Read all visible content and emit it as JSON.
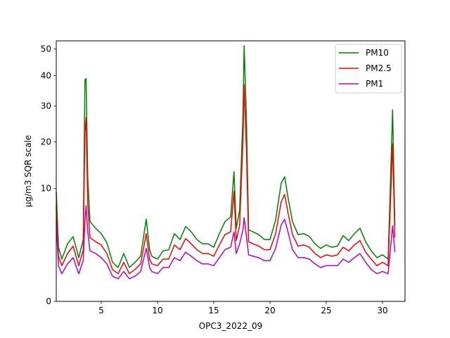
{
  "chart_data": {
    "type": "line",
    "title": "",
    "xlabel": "OPC3_2022_09",
    "ylabel": "µg/m3 SQR scale",
    "y_scale": "sqrt",
    "xlim": [
      1,
      32
    ],
    "ylim": [
      0,
      53.3
    ],
    "x_ticks": [
      5,
      10,
      15,
      20,
      25,
      30
    ],
    "y_ticks": [
      0,
      10,
      20,
      30,
      40,
      50
    ],
    "legend_position": "upper right",
    "grid": false,
    "series": [
      {
        "name": "PM10",
        "color": "#008000",
        "points": [
          [
            1,
            9.5
          ],
          [
            1.2,
            2.3
          ],
          [
            1.5,
            1.4
          ],
          [
            2.0,
            2.6
          ],
          [
            2.5,
            3.3
          ],
          [
            3.0,
            1.5
          ],
          [
            3.4,
            3.0
          ],
          [
            3.55,
            38.5
          ],
          [
            3.65,
            39.0
          ],
          [
            3.8,
            12.0
          ],
          [
            4.0,
            5.0
          ],
          [
            4.5,
            4.2
          ],
          [
            5.0,
            3.6
          ],
          [
            5.5,
            2.7
          ],
          [
            6.0,
            1.2
          ],
          [
            6.5,
            0.9
          ],
          [
            7.0,
            1.8
          ],
          [
            7.5,
            0.9
          ],
          [
            8.0,
            1.2
          ],
          [
            8.5,
            1.6
          ],
          [
            9.0,
            5.3
          ],
          [
            9.3,
            2.1
          ],
          [
            9.5,
            1.6
          ],
          [
            10.0,
            1.4
          ],
          [
            10.5,
            2.0
          ],
          [
            11.0,
            2.1
          ],
          [
            11.5,
            3.6
          ],
          [
            12.0,
            3.0
          ],
          [
            12.5,
            4.4
          ],
          [
            13.0,
            3.8
          ],
          [
            13.5,
            3.0
          ],
          [
            14.0,
            2.6
          ],
          [
            14.5,
            2.6
          ],
          [
            15.0,
            2.3
          ],
          [
            15.5,
            3.6
          ],
          [
            16.0,
            5.0
          ],
          [
            16.5,
            5.6
          ],
          [
            16.8,
            13.2
          ],
          [
            17.0,
            4.2
          ],
          [
            17.3,
            6.5
          ],
          [
            17.6,
            27.5
          ],
          [
            17.7,
            51.3
          ],
          [
            17.9,
            27.0
          ],
          [
            18.1,
            4.0
          ],
          [
            18.5,
            3.8
          ],
          [
            19.0,
            3.5
          ],
          [
            19.5,
            3.0
          ],
          [
            20.0,
            3.0
          ],
          [
            20.5,
            5.2
          ],
          [
            21.0,
            11.0
          ],
          [
            21.3,
            12.2
          ],
          [
            21.6,
            8.5
          ],
          [
            22.0,
            5.0
          ],
          [
            22.5,
            3.5
          ],
          [
            23.0,
            3.6
          ],
          [
            23.5,
            3.3
          ],
          [
            24.0,
            2.6
          ],
          [
            24.5,
            2.2
          ],
          [
            25.0,
            2.5
          ],
          [
            25.5,
            2.3
          ],
          [
            26.0,
            2.4
          ],
          [
            26.5,
            3.4
          ],
          [
            27.0,
            2.9
          ],
          [
            27.5,
            3.6
          ],
          [
            28.0,
            4.2
          ],
          [
            28.5,
            2.8
          ],
          [
            29.0,
            2.0
          ],
          [
            29.5,
            1.5
          ],
          [
            30.0,
            1.7
          ],
          [
            30.5,
            1.4
          ],
          [
            30.9,
            28.8
          ],
          [
            31.1,
            4.5
          ]
        ]
      },
      {
        "name": "PM2.5",
        "color": "#ff0000",
        "points": [
          [
            1,
            7.0
          ],
          [
            1.2,
            1.6
          ],
          [
            1.5,
            1.0
          ],
          [
            2.0,
            1.8
          ],
          [
            2.5,
            2.4
          ],
          [
            3.0,
            1.0
          ],
          [
            3.4,
            2.1
          ],
          [
            3.55,
            22.3
          ],
          [
            3.65,
            26.5
          ],
          [
            3.8,
            7.5
          ],
          [
            4.0,
            3.2
          ],
          [
            4.5,
            2.8
          ],
          [
            5.0,
            2.5
          ],
          [
            5.5,
            1.8
          ],
          [
            6.0,
            0.8
          ],
          [
            6.5,
            0.6
          ],
          [
            7.0,
            1.2
          ],
          [
            7.5,
            0.6
          ],
          [
            8.0,
            0.8
          ],
          [
            8.5,
            1.1
          ],
          [
            9.0,
            3.6
          ],
          [
            9.3,
            1.4
          ],
          [
            9.5,
            1.1
          ],
          [
            10.0,
            1.0
          ],
          [
            10.5,
            1.4
          ],
          [
            11.0,
            1.4
          ],
          [
            11.5,
            2.5
          ],
          [
            12.0,
            2.1
          ],
          [
            12.5,
            3.1
          ],
          [
            13.0,
            2.6
          ],
          [
            13.5,
            2.1
          ],
          [
            14.0,
            1.8
          ],
          [
            14.5,
            1.8
          ],
          [
            15.0,
            1.6
          ],
          [
            15.5,
            2.5
          ],
          [
            16.0,
            3.5
          ],
          [
            16.5,
            3.8
          ],
          [
            16.8,
            9.5
          ],
          [
            17.0,
            2.9
          ],
          [
            17.3,
            4.5
          ],
          [
            17.6,
            20.5
          ],
          [
            17.7,
            36.8
          ],
          [
            17.9,
            18.5
          ],
          [
            18.1,
            2.8
          ],
          [
            18.5,
            2.6
          ],
          [
            19.0,
            2.4
          ],
          [
            19.5,
            2.1
          ],
          [
            20.0,
            2.1
          ],
          [
            20.5,
            3.6
          ],
          [
            21.0,
            7.8
          ],
          [
            21.3,
            9.0
          ],
          [
            21.6,
            6.2
          ],
          [
            22.0,
            3.5
          ],
          [
            22.5,
            2.4
          ],
          [
            23.0,
            2.5
          ],
          [
            23.5,
            2.3
          ],
          [
            24.0,
            1.8
          ],
          [
            24.5,
            1.5
          ],
          [
            25.0,
            1.7
          ],
          [
            25.5,
            1.6
          ],
          [
            26.0,
            1.7
          ],
          [
            26.5,
            2.3
          ],
          [
            27.0,
            2.0
          ],
          [
            27.5,
            2.5
          ],
          [
            28.0,
            2.9
          ],
          [
            28.5,
            1.9
          ],
          [
            29.0,
            1.4
          ],
          [
            29.5,
            1.0
          ],
          [
            30.0,
            1.2
          ],
          [
            30.5,
            1.0
          ],
          [
            30.9,
            19.5
          ],
          [
            31.1,
            3.2
          ]
        ]
      },
      {
        "name": "PM1",
        "color": "#bf00bf",
        "points": [
          [
            1,
            4.8
          ],
          [
            1.2,
            1.0
          ],
          [
            1.5,
            0.6
          ],
          [
            2.0,
            1.1
          ],
          [
            2.5,
            1.5
          ],
          [
            3.0,
            0.6
          ],
          [
            3.4,
            1.3
          ],
          [
            3.55,
            5.0
          ],
          [
            3.65,
            7.2
          ],
          [
            3.8,
            3.8
          ],
          [
            4.0,
            2.0
          ],
          [
            4.5,
            1.8
          ],
          [
            5.0,
            1.5
          ],
          [
            5.5,
            1.1
          ],
          [
            6.0,
            0.5
          ],
          [
            6.5,
            0.4
          ],
          [
            7.0,
            0.7
          ],
          [
            7.5,
            0.4
          ],
          [
            8.0,
            0.5
          ],
          [
            8.5,
            0.7
          ],
          [
            9.0,
            2.2
          ],
          [
            9.3,
            0.9
          ],
          [
            9.5,
            0.7
          ],
          [
            10.0,
            0.6
          ],
          [
            10.5,
            0.9
          ],
          [
            11.0,
            0.9
          ],
          [
            11.5,
            1.5
          ],
          [
            12.0,
            1.3
          ],
          [
            12.5,
            1.9
          ],
          [
            13.0,
            1.6
          ],
          [
            13.5,
            1.3
          ],
          [
            14.0,
            1.1
          ],
          [
            14.5,
            1.1
          ],
          [
            15.0,
            1.0
          ],
          [
            15.5,
            1.5
          ],
          [
            16.0,
            2.1
          ],
          [
            16.5,
            2.3
          ],
          [
            16.8,
            3.8
          ],
          [
            17.0,
            1.8
          ],
          [
            17.3,
            2.6
          ],
          [
            17.6,
            4.0
          ],
          [
            17.7,
            5.5
          ],
          [
            17.9,
            3.4
          ],
          [
            18.1,
            1.7
          ],
          [
            18.5,
            1.6
          ],
          [
            19.0,
            1.5
          ],
          [
            19.5,
            1.3
          ],
          [
            20.0,
            1.3
          ],
          [
            20.5,
            2.2
          ],
          [
            21.0,
            4.6
          ],
          [
            21.3,
            5.3
          ],
          [
            21.6,
            3.8
          ],
          [
            22.0,
            2.1
          ],
          [
            22.5,
            1.5
          ],
          [
            23.0,
            1.5
          ],
          [
            23.5,
            1.4
          ],
          [
            24.0,
            1.1
          ],
          [
            24.5,
            0.9
          ],
          [
            25.0,
            1.0
          ],
          [
            25.5,
            1.0
          ],
          [
            26.0,
            1.0
          ],
          [
            26.5,
            1.4
          ],
          [
            27.0,
            1.2
          ],
          [
            27.5,
            1.5
          ],
          [
            28.0,
            1.8
          ],
          [
            28.5,
            1.2
          ],
          [
            29.0,
            0.8
          ],
          [
            29.5,
            0.6
          ],
          [
            30.0,
            0.7
          ],
          [
            30.5,
            0.6
          ],
          [
            30.9,
            4.5
          ],
          [
            31.1,
            1.9
          ]
        ]
      }
    ]
  }
}
